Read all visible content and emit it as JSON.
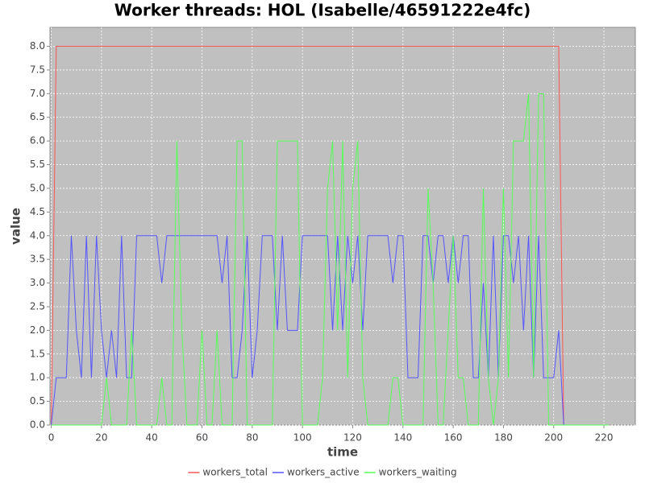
{
  "chart_data": {
    "type": "line",
    "title": "Worker threads: HOL (Isabelle/46591222e4fc)",
    "x_label": "time",
    "y_label": "value",
    "x": [
      0,
      2,
      4,
      6,
      8,
      10,
      12,
      14,
      16,
      18,
      20,
      22,
      24,
      26,
      28,
      30,
      32,
      34,
      36,
      38,
      40,
      42,
      44,
      46,
      48,
      50,
      52,
      54,
      56,
      58,
      60,
      62,
      64,
      66,
      68,
      70,
      72,
      74,
      76,
      78,
      80,
      82,
      84,
      86,
      88,
      90,
      92,
      94,
      96,
      98,
      100,
      102,
      104,
      106,
      108,
      110,
      112,
      114,
      116,
      118,
      120,
      122,
      124,
      126,
      128,
      130,
      132,
      134,
      136,
      138,
      140,
      142,
      144,
      146,
      148,
      150,
      152,
      154,
      156,
      158,
      160,
      162,
      164,
      166,
      168,
      170,
      172,
      174,
      176,
      178,
      180,
      182,
      184,
      186,
      188,
      190,
      192,
      194,
      196,
      198,
      200,
      202,
      204,
      206,
      208,
      210,
      212,
      214,
      216,
      218,
      220,
      222
    ],
    "series": [
      {
        "name": "workers_total",
        "color": "#ff5555",
        "values": [
          0,
          8,
          8,
          8,
          8,
          8,
          8,
          8,
          8,
          8,
          8,
          8,
          8,
          8,
          8,
          8,
          8,
          8,
          8,
          8,
          8,
          8,
          8,
          8,
          8,
          8,
          8,
          8,
          8,
          8,
          8,
          8,
          8,
          8,
          8,
          8,
          8,
          8,
          8,
          8,
          8,
          8,
          8,
          8,
          8,
          8,
          8,
          8,
          8,
          8,
          8,
          8,
          8,
          8,
          8,
          8,
          8,
          8,
          8,
          8,
          8,
          8,
          8,
          8,
          8,
          8,
          8,
          8,
          8,
          8,
          8,
          8,
          8,
          8,
          8,
          8,
          8,
          8,
          8,
          8,
          8,
          8,
          8,
          8,
          8,
          8,
          8,
          8,
          8,
          8,
          8,
          8,
          8,
          8,
          8,
          8,
          8,
          8,
          8,
          8,
          8,
          8,
          0,
          0,
          0,
          0,
          0,
          0,
          0,
          0,
          0,
          0
        ]
      },
      {
        "name": "workers_active",
        "color": "#5555ff",
        "values": [
          0,
          1,
          1,
          1,
          4,
          2,
          1,
          4,
          1,
          4,
          2,
          1,
          2,
          1,
          4,
          1,
          1,
          4,
          4,
          4,
          4,
          4,
          3,
          4,
          4,
          4,
          4,
          4,
          4,
          4,
          4,
          4,
          4,
          4,
          3,
          4,
          1,
          1,
          2,
          4,
          1,
          2,
          4,
          4,
          4,
          2,
          4,
          2,
          2,
          2,
          4,
          4,
          4,
          4,
          4,
          4,
          2,
          4,
          2,
          4,
          3,
          4,
          2,
          4,
          4,
          4,
          4,
          4,
          3,
          4,
          4,
          1,
          1,
          1,
          4,
          4,
          3,
          4,
          4,
          3,
          4,
          3,
          4,
          4,
          1,
          1,
          3,
          1,
          4,
          1,
          4,
          4,
          3,
          4,
          2,
          4,
          1,
          4,
          1,
          1,
          1,
          2,
          0,
          0,
          0,
          0,
          0,
          0,
          0,
          0,
          0,
          0
        ]
      },
      {
        "name": "workers_waiting",
        "color": "#55ff55",
        "values": [
          0,
          0,
          0,
          0,
          0,
          0,
          0,
          0,
          0,
          0,
          0,
          1,
          0,
          0,
          0,
          0,
          2,
          0,
          0,
          0,
          0,
          0,
          1,
          0,
          0,
          6,
          2,
          0,
          0,
          0,
          2,
          0,
          0,
          2,
          0,
          0,
          0,
          6,
          6,
          0,
          0,
          0,
          0,
          0,
          0,
          6,
          6,
          6,
          6,
          6,
          0,
          0,
          0,
          0,
          1,
          5,
          6,
          2,
          6,
          1,
          5,
          6,
          1,
          0,
          0,
          0,
          0,
          0,
          1,
          1,
          0,
          0,
          0,
          0,
          0,
          5,
          3,
          0,
          0,
          2,
          4,
          1,
          1,
          0,
          0,
          0,
          5,
          1,
          0,
          1,
          5,
          1,
          6,
          6,
          6,
          7,
          1,
          7,
          7,
          0,
          0,
          0,
          0,
          0,
          0,
          0,
          0,
          0,
          0,
          0,
          0,
          0
        ]
      }
    ],
    "xlim": [
      -0.5,
      232.5
    ],
    "ylim": [
      0,
      8.4
    ],
    "xticks": [
      0,
      20,
      40,
      60,
      80,
      100,
      120,
      140,
      160,
      180,
      200,
      220
    ],
    "yticks": [
      {
        "value": 0,
        "label": "0.0"
      },
      {
        "value": 0.5,
        "label": "0.5"
      },
      {
        "value": 1,
        "label": "1.0"
      },
      {
        "value": 1.5,
        "label": "1.5"
      },
      {
        "value": 2,
        "label": "2.0"
      },
      {
        "value": 2.5,
        "label": "2.5"
      },
      {
        "value": 3,
        "label": "3.0"
      },
      {
        "value": 3.5,
        "label": "3.5"
      },
      {
        "value": 4,
        "label": "4.0"
      },
      {
        "value": 4.5,
        "label": "4.5"
      },
      {
        "value": 5,
        "label": "5.0"
      },
      {
        "value": 5.5,
        "label": "5.5"
      },
      {
        "value": 6,
        "label": "6.0"
      },
      {
        "value": 6.5,
        "label": "6.5"
      },
      {
        "value": 7,
        "label": "7.0"
      },
      {
        "value": 7.5,
        "label": "7.5"
      },
      {
        "value": 8,
        "label": "8.0"
      }
    ],
    "grid": true,
    "legend": "bottom"
  }
}
